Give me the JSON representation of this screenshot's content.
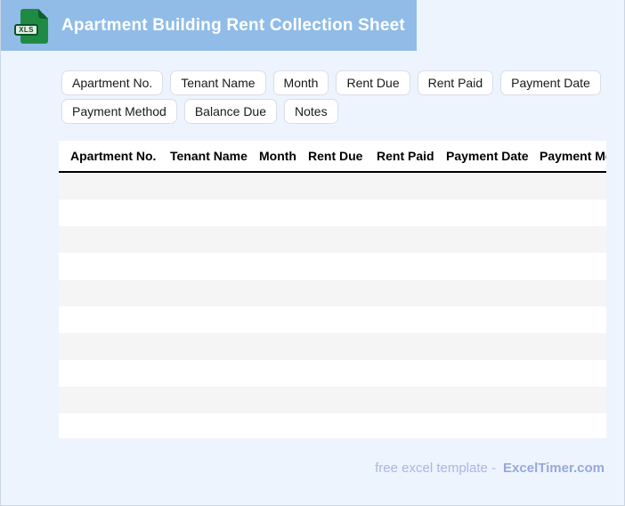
{
  "header": {
    "title": "Apartment Building Rent Collection Sheet",
    "file_type_label": "XLS"
  },
  "chips": [
    "Apartment No.",
    "Tenant Name",
    "Month",
    "Rent Due",
    "Rent Paid",
    "Payment Date",
    "Payment Method",
    "Balance Due",
    "Notes"
  ],
  "table": {
    "columns": [
      "Apartment No.",
      "Tenant Name",
      "Month",
      "Rent Due",
      "Rent Paid",
      "Payment Date",
      "Payment Method"
    ],
    "empty_row_count": 10
  },
  "footer": {
    "prefix": "free excel template -",
    "brand": "ExcelTimer.com"
  },
  "colors": {
    "header_bar": "#90bce7",
    "page_background": "#edf4fd",
    "row_stripe": "#f5f5f5",
    "icon_green": "#1f8a44",
    "footer_text": "#a9b6e3",
    "footer_brand": "#96a8db"
  }
}
